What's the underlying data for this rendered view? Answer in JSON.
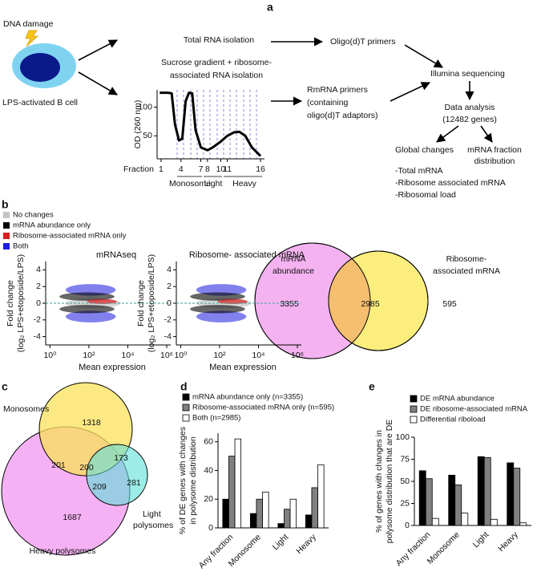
{
  "panel_labels": [
    "a",
    "b",
    "c",
    "d",
    "e"
  ],
  "workflow": {
    "dna_damage": "DNA damage",
    "cell": "LPS-activated B cell",
    "total_rna": "Total RNA isolation",
    "oligo": "Oligo(d)T primers",
    "sucrose": [
      "Sucrose gradient + ribosome-",
      "associated RNA isolation"
    ],
    "rmrna": [
      "RmRNA primers",
      "(containing",
      "oligo(d)T adaptors)"
    ],
    "illumina": "Illumina sequencing",
    "analysis": [
      "Data analysis",
      "(12482 genes)"
    ],
    "global": "Global changes",
    "fraction_dist": [
      "mRNA fraction",
      "distribution"
    ],
    "outputs": [
      "-Total mRNA",
      "-Ribosome associated mRNA",
      "-Ribosomal load"
    ],
    "fraction_groups": [
      "Monosome",
      "Light",
      "Heavy"
    ]
  },
  "de_legend": [
    {
      "name": "No changes",
      "color": "#c4c4c4"
    },
    {
      "name": "mRNA abundance only",
      "color": "#000000"
    },
    {
      "name": "Ribosome-associated mRNA only",
      "color": "#d81e1e"
    },
    {
      "name": "Both",
      "color": "#1a1ae0"
    }
  ],
  "venn_b": {
    "sets": [
      [
        "mRNA",
        "abundance"
      ],
      [
        "Ribosome-",
        "associated mRNA"
      ]
    ],
    "regions": [
      3355,
      2985,
      595
    ]
  },
  "venn_c": {
    "sets": [
      "Monosomes",
      [
        "Light",
        "polysomes"
      ],
      "Heavy polysomes"
    ],
    "regions": [
      1318,
      201,
      200,
      173,
      209,
      281,
      1687
    ]
  },
  "chart_data": [
    {
      "type": "line",
      "xlabel": "Fraction",
      "ylabel": "OD (260 nm)",
      "x": [
        0.8,
        2,
        2.6,
        3.1,
        3.7,
        4.2,
        4.7,
        5.2,
        5.7,
        6.2,
        7,
        8,
        8.8,
        10,
        11,
        12,
        12.8,
        13.7,
        14.7,
        16
      ],
      "values": [
        125,
        125,
        124,
        70,
        42,
        45,
        110,
        125,
        124,
        60,
        30,
        25,
        30,
        40,
        50,
        56,
        57,
        50,
        30,
        15
      ],
      "color": "#000000",
      "xlim": [
        0.4,
        16.6
      ],
      "ylim": [
        10,
        130
      ],
      "xticks": [
        1,
        4,
        7,
        8,
        10,
        11,
        16
      ],
      "yticks": [
        50,
        100
      ]
    },
    {
      "type": "scatter",
      "title": "mRNAseq",
      "xlabel": "Mean expression",
      "ylabel": [
        "Fold change",
        "(log₂ LPS+etoposide/LPS)"
      ],
      "log_x": true,
      "xlim": [
        0.6,
        1600000
      ],
      "ylim": [
        -5,
        5
      ],
      "xticks": [
        {
          "value": 1,
          "label": "10⁰"
        },
        {
          "value": 100,
          "label": "10²"
        },
        {
          "value": 10000,
          "label": "10⁴"
        },
        {
          "value": 1000000,
          "label": "10⁶"
        }
      ],
      "yticks": [
        4,
        2,
        0,
        -2,
        -4
      ],
      "hline": 0,
      "hline_color": "#3aa39a"
    },
    {
      "type": "scatter",
      "title": "Ribosome- associated mRNA",
      "xlabel": "Mean expression",
      "ylabel": [
        "Fold change",
        "(log₂ LPS+etoposide/LPS)"
      ],
      "log_x": true,
      "xlim": [
        0.6,
        1600000
      ],
      "ylim": [
        -5,
        5
      ],
      "xticks": [
        {
          "value": 1,
          "label": "10⁰"
        },
        {
          "value": 100,
          "label": "10²"
        },
        {
          "value": 10000,
          "label": "10⁴"
        },
        {
          "value": 1000000,
          "label": "10⁶"
        }
      ],
      "yticks": [
        4,
        2,
        0,
        -2,
        -4
      ],
      "hline": 0,
      "hline_color": "#3aa39a"
    },
    {
      "type": "bar",
      "ylabel": [
        "% of DE genes with changes",
        "in polysome distribution"
      ],
      "categories": [
        "Any fraction",
        "Monosome",
        "Light",
        "Heavy"
      ],
      "series": [
        {
          "name": "mRNA abundance only (n=3355)",
          "color": "#000000",
          "values": [
            20,
            10,
            3,
            9
          ]
        },
        {
          "name": "Ribosome-associated mRNA only (n=595)",
          "color": "#808080",
          "values": [
            50,
            20,
            13,
            28
          ]
        },
        {
          "name": "Both (n=2985)",
          "color": "#ffffff",
          "values": [
            62,
            25,
            20,
            44
          ]
        }
      ],
      "ylim": [
        0,
        66
      ],
      "yticks": [
        0,
        20,
        40,
        60
      ]
    },
    {
      "type": "bar",
      "ylabel": [
        "% of genes with changes in",
        "polysome distribution that are DE"
      ],
      "categories": [
        "Any fraction",
        "Monosome",
        "Light",
        "Heavy"
      ],
      "series": [
        {
          "name": "DE mRNA abundance",
          "color": "#000000",
          "values": [
            62,
            57,
            78,
            71
          ]
        },
        {
          "name": "DE ribosome-associated mRNA",
          "color": "#808080",
          "values": [
            53,
            46,
            77,
            65
          ]
        },
        {
          "name": "Differential riboload",
          "color": "#ffffff",
          "values": [
            8,
            14,
            7,
            3
          ]
        }
      ],
      "ylim": [
        0,
        100
      ],
      "yticks": [
        0,
        25,
        50,
        75,
        100
      ]
    }
  ]
}
